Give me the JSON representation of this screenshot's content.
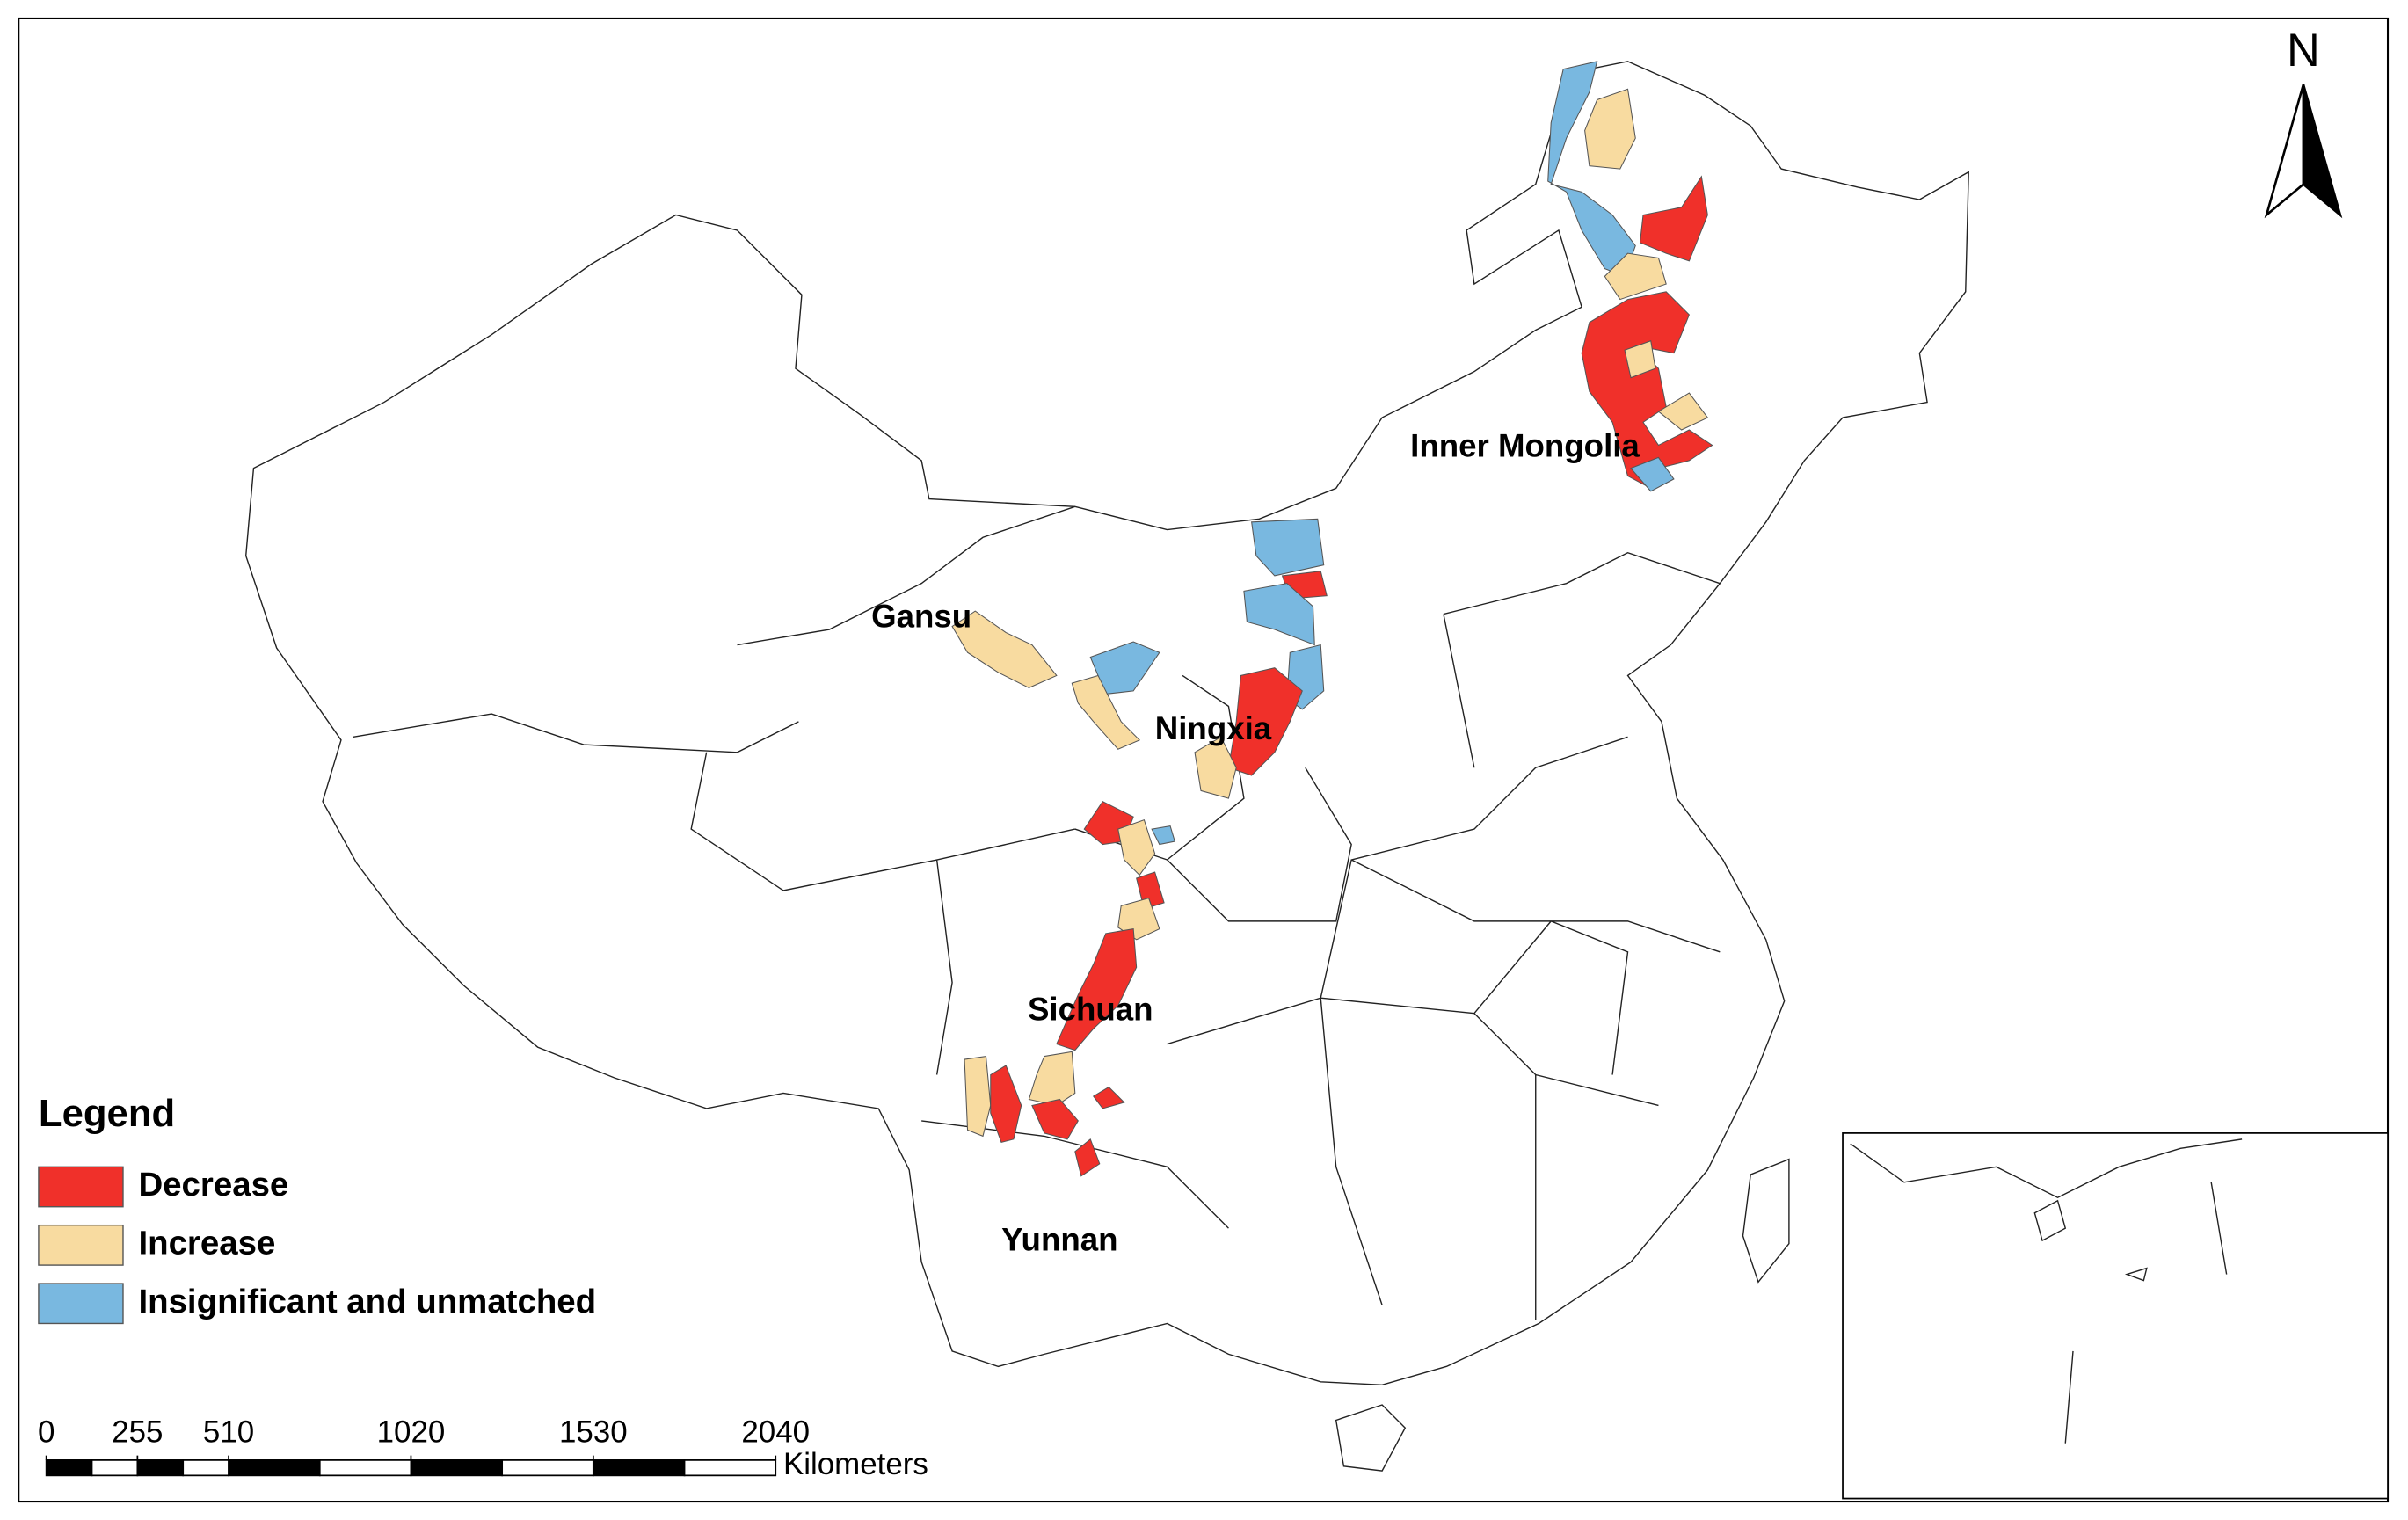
{
  "map": {
    "region_labels": [
      "Inner Mongolia",
      "Gansu",
      "Ningxia",
      "Sichuan",
      "Yunnan"
    ],
    "legend": {
      "title": "Legend",
      "items": [
        {
          "label": "Decrease",
          "color": "#f0302a"
        },
        {
          "label": "Increase",
          "color": "#f8dba0"
        },
        {
          "label": "Insignificant and unmatched",
          "color": "#79b8e0"
        }
      ]
    },
    "scale_bar": {
      "ticks": [
        0,
        255,
        510,
        1020,
        1530,
        2040
      ],
      "unit": "Kilometers"
    },
    "north": "N"
  }
}
